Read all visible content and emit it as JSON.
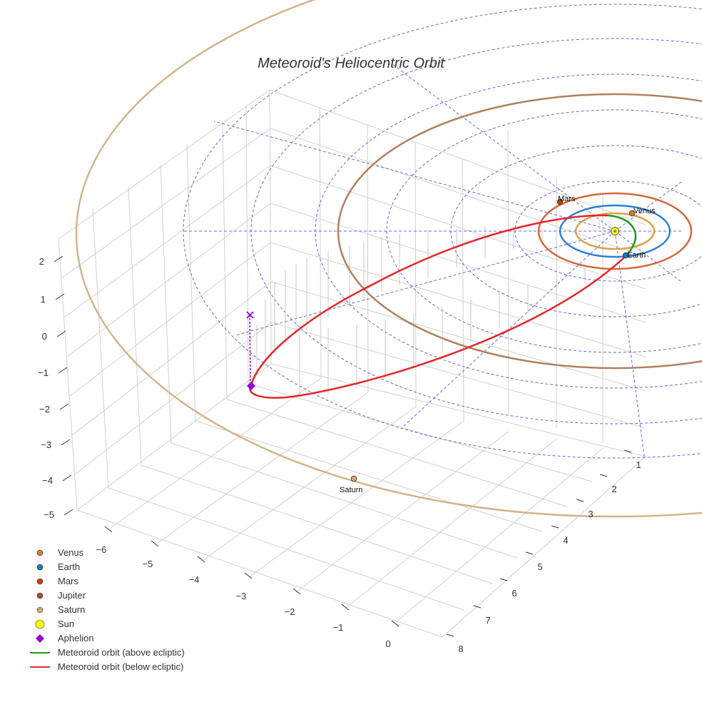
{
  "chart_data": {
    "type": "scatter3d",
    "title": "Meteoroid's Heliocentric Orbit",
    "axes": {
      "x_ticks": [
        "−6",
        "−5",
        "−4",
        "−3",
        "−2",
        "−1",
        "0"
      ],
      "y_ticks": [
        "1",
        "2",
        "3",
        "4",
        "5",
        "6",
        "7",
        "8"
      ],
      "z_ticks": [
        "2",
        "1",
        "0",
        "−1",
        "−2",
        "−3",
        "−4",
        "−5"
      ]
    },
    "bodies": [
      {
        "name": "Venus",
        "color": "#cd7f32",
        "label": "Venus"
      },
      {
        "name": "Earth",
        "color": "#1f77b4",
        "label": "Earth"
      },
      {
        "name": "Mars",
        "color": "#c1440e",
        "label": "Mars"
      },
      {
        "name": "Jupiter",
        "color": "#a0522d",
        "label": ""
      },
      {
        "name": "Saturn",
        "color": "#d2a679",
        "label": "Saturn"
      },
      {
        "name": "Sun",
        "color": "#ffff00",
        "label": ""
      }
    ],
    "orbits": [
      {
        "name": "Venus",
        "color": "#e0a04a"
      },
      {
        "name": "Earth",
        "color": "#2e7fd6"
      },
      {
        "name": "Mars",
        "color": "#d2693c"
      },
      {
        "name": "Jupiter",
        "color": "#b08060"
      },
      {
        "name": "Saturn",
        "color": "#d4b48c"
      }
    ],
    "series": [
      {
        "name": "Aphelion",
        "color": "#9400d3"
      },
      {
        "name": "Meteoroid orbit (above ecliptic)",
        "color": "#1a9a1a"
      },
      {
        "name": "Meteoroid orbit (below ecliptic)",
        "color": "#e8262a"
      }
    ],
    "legend": {
      "placement": "bottom-left",
      "items": [
        {
          "label": "Venus",
          "marker": "circle",
          "color": "#cd7f32"
        },
        {
          "label": "Earth",
          "marker": "circle",
          "color": "#1f77b4"
        },
        {
          "label": "Mars",
          "marker": "circle",
          "color": "#c1440e"
        },
        {
          "label": "Jupiter",
          "marker": "circle",
          "color": "#a0522d"
        },
        {
          "label": "Saturn",
          "marker": "circle",
          "color": "#d2a679"
        },
        {
          "label": "Sun",
          "marker": "circle-large",
          "color": "#ffff00"
        },
        {
          "label": "Aphelion",
          "marker": "diamond",
          "color": "#9400d3"
        },
        {
          "label": "Meteoroid orbit (above ecliptic)",
          "marker": "line",
          "color": "#1a9a1a"
        },
        {
          "label": "Meteoroid orbit (below ecliptic)",
          "marker": "line",
          "color": "#e8262a"
        }
      ]
    },
    "grid": true,
    "ecliptic_grid": {
      "style": "dashed",
      "color": "#5555dd"
    }
  }
}
